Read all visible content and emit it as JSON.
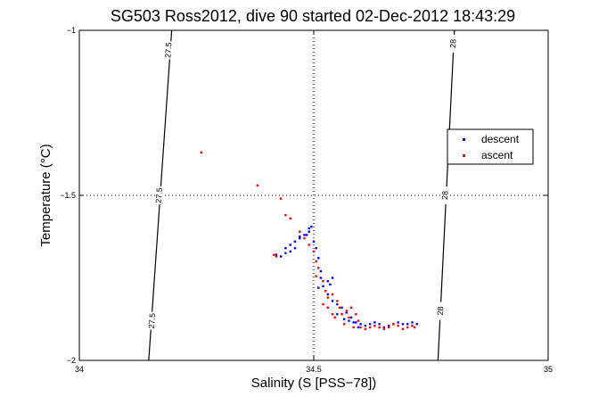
{
  "chart_data": {
    "type": "scatter",
    "title": "SG503 Ross2012, dive 90 started 02-Dec-2012 18:43:29",
    "xlabel": "Salinity (S [PSS−78])",
    "ylabel": "Temperature (°C)",
    "xlim": [
      34,
      35
    ],
    "ylim": [
      -2,
      -1
    ],
    "xticks": [
      34,
      34.5,
      35
    ],
    "yticks": [
      -2,
      -1.5,
      -1
    ],
    "xtick_labels": [
      "34",
      "34.5",
      "35"
    ],
    "ytick_labels": [
      "−2",
      "−1.5",
      "−1"
    ],
    "grid": "dotted at 34.5 and -1.5",
    "legend": {
      "position": "right",
      "entries": [
        {
          "label": "descent",
          "color": "#0000ff"
        },
        {
          "label": "ascent",
          "color": "#ff0000"
        }
      ]
    },
    "contours": [
      {
        "label": "27.5",
        "points": [
          [
            34.197,
            -1
          ],
          [
            34.148,
            -2
          ]
        ],
        "label_positions": [
          [
            34.19,
            -1.06
          ],
          [
            34.17,
            -1.5
          ],
          [
            34.155,
            -1.88
          ]
        ]
      },
      {
        "label": "28",
        "points": [
          [
            34.8,
            -1
          ],
          [
            34.765,
            -2
          ]
        ],
        "label_positions": [
          [
            34.797,
            -1.04
          ],
          [
            34.78,
            -1.5
          ],
          [
            34.77,
            -1.85
          ]
        ]
      }
    ],
    "series": [
      {
        "name": "descent",
        "color": "#0000ff",
        "points": [
          [
            34.42,
            -1.68
          ],
          [
            34.43,
            -1.685
          ],
          [
            34.44,
            -1.66
          ],
          [
            34.45,
            -1.65
          ],
          [
            34.46,
            -1.64
          ],
          [
            34.47,
            -1.63
          ],
          [
            34.48,
            -1.62
          ],
          [
            34.49,
            -1.6
          ],
          [
            34.495,
            -1.595
          ],
          [
            34.49,
            -1.61
          ],
          [
            34.485,
            -1.62
          ],
          [
            34.47,
            -1.625
          ],
          [
            34.46,
            -1.66
          ],
          [
            34.45,
            -1.67
          ],
          [
            34.44,
            -1.675
          ],
          [
            34.5,
            -1.64
          ],
          [
            34.505,
            -1.66
          ],
          [
            34.51,
            -1.69
          ],
          [
            34.515,
            -1.73
          ],
          [
            34.515,
            -1.75
          ],
          [
            34.51,
            -1.78
          ],
          [
            34.52,
            -1.775
          ],
          [
            34.53,
            -1.76
          ],
          [
            34.54,
            -1.75
          ],
          [
            34.535,
            -1.77
          ],
          [
            34.53,
            -1.8
          ],
          [
            34.54,
            -1.82
          ],
          [
            34.55,
            -1.83
          ],
          [
            34.56,
            -1.84
          ],
          [
            34.57,
            -1.855
          ],
          [
            34.58,
            -1.87
          ],
          [
            34.59,
            -1.885
          ],
          [
            34.6,
            -1.89
          ],
          [
            34.61,
            -1.895
          ],
          [
            34.62,
            -1.89
          ],
          [
            34.63,
            -1.885
          ],
          [
            34.64,
            -1.89
          ],
          [
            34.65,
            -1.9
          ],
          [
            34.66,
            -1.895
          ],
          [
            34.67,
            -1.89
          ],
          [
            34.68,
            -1.885
          ],
          [
            34.69,
            -1.89
          ],
          [
            34.7,
            -1.89
          ],
          [
            34.71,
            -1.885
          ],
          [
            34.72,
            -1.89
          ],
          [
            34.55,
            -1.86
          ],
          [
            34.565,
            -1.875
          ],
          [
            34.575,
            -1.88
          ],
          [
            34.585,
            -1.885
          ],
          [
            34.595,
            -1.9
          ]
        ]
      },
      {
        "name": "ascent",
        "color": "#ff0000",
        "points": [
          [
            34.26,
            -1.37
          ],
          [
            34.38,
            -1.47
          ],
          [
            34.43,
            -1.51
          ],
          [
            34.44,
            -1.56
          ],
          [
            34.45,
            -1.57
          ],
          [
            34.47,
            -1.61
          ],
          [
            34.48,
            -1.63
          ],
          [
            34.49,
            -1.65
          ],
          [
            34.5,
            -1.67
          ],
          [
            34.505,
            -1.7
          ],
          [
            34.51,
            -1.72
          ],
          [
            34.52,
            -1.76
          ],
          [
            34.525,
            -1.79
          ],
          [
            34.53,
            -1.81
          ],
          [
            34.54,
            -1.8
          ],
          [
            34.55,
            -1.82
          ],
          [
            34.555,
            -1.84
          ],
          [
            34.56,
            -1.86
          ],
          [
            34.57,
            -1.85
          ],
          [
            34.58,
            -1.84
          ],
          [
            34.59,
            -1.86
          ],
          [
            34.595,
            -1.88
          ],
          [
            34.6,
            -1.9
          ],
          [
            34.61,
            -1.905
          ],
          [
            34.62,
            -1.9
          ],
          [
            34.63,
            -1.895
          ],
          [
            34.64,
            -1.9
          ],
          [
            34.65,
            -1.905
          ],
          [
            34.66,
            -1.9
          ],
          [
            34.67,
            -1.89
          ],
          [
            34.68,
            -1.895
          ],
          [
            34.69,
            -1.905
          ],
          [
            34.7,
            -1.9
          ],
          [
            34.71,
            -1.895
          ],
          [
            34.715,
            -1.9
          ],
          [
            34.53,
            -1.84
          ],
          [
            34.545,
            -1.87
          ],
          [
            34.565,
            -1.89
          ],
          [
            34.42,
            -1.685
          ],
          [
            34.415,
            -1.68
          ],
          [
            34.505,
            -1.745
          ],
          [
            34.52,
            -1.83
          ],
          [
            34.54,
            -1.86
          ],
          [
            34.575,
            -1.87
          ],
          [
            34.585,
            -1.9
          ]
        ]
      }
    ]
  }
}
